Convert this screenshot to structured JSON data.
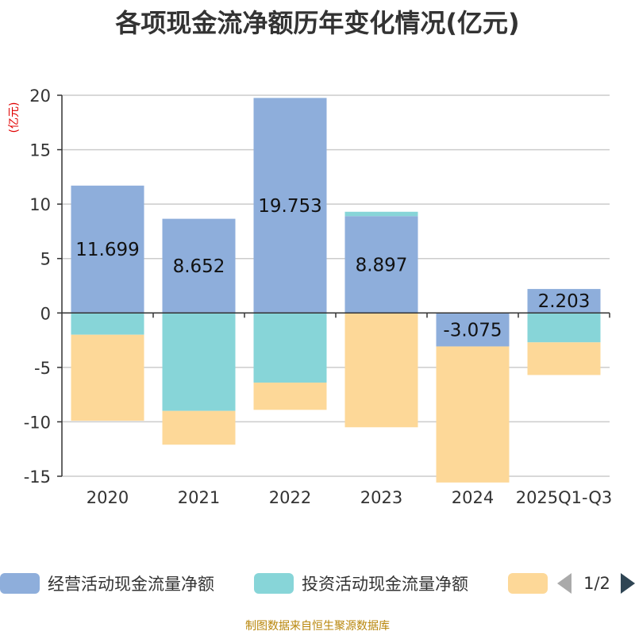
{
  "chart_data": {
    "type": "bar",
    "stacked": true,
    "title": "各项现金流净额历年变化情况(亿元)",
    "ylabel": "(亿元)",
    "xlabel": "",
    "ylim": [
      -15,
      20
    ],
    "yticks": [
      20,
      15,
      10,
      5,
      0,
      -5,
      -10,
      -15
    ],
    "categories": [
      "2020",
      "2021",
      "2022",
      "2023",
      "2024",
      "2025Q1-Q3"
    ],
    "series": [
      {
        "name": "经营活动现金流量净额",
        "color": "#8eaedb",
        "values": [
          11.699,
          8.652,
          19.753,
          8.897,
          -3.075,
          2.203
        ],
        "labels": [
          "11.699",
          "8.652",
          "19.753",
          "8.897",
          "-3.075",
          "2.203"
        ]
      },
      {
        "name": "投资活动现金流量净额",
        "color": "#87d5d8",
        "values": [
          -2.0,
          -9.0,
          -6.4,
          0.4,
          0,
          -2.7
        ]
      },
      {
        "name": "",
        "color": "#fdd898",
        "values": [
          -7.9,
          -3.1,
          -2.5,
          -10.5,
          -12.5,
          -3.0
        ]
      }
    ],
    "grid": true,
    "legend": {
      "position": "bottom",
      "page": "1/2"
    }
  },
  "footer": "制图数据来自恒生聚源数据库"
}
